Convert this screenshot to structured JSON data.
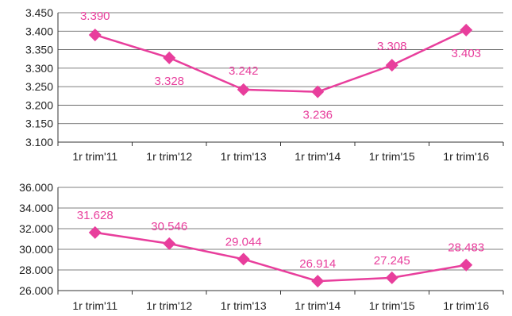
{
  "chart_data": [
    {
      "type": "line",
      "categories": [
        "1r trim'11",
        "1r trim'12",
        "1r trim'13",
        "1r trim'14",
        "1r trim'15",
        "1r trim'16"
      ],
      "values": [
        3390,
        3328,
        3242,
        3236,
        3308,
        3403
      ],
      "value_labels": [
        "3.390",
        "3.328",
        "3.242",
        "3.236",
        "3.308",
        "3.403"
      ],
      "label_side": [
        "above",
        "below",
        "above",
        "below",
        "above",
        "below"
      ],
      "ylim": [
        3100,
        3450
      ],
      "yticks": [
        3100,
        3150,
        3200,
        3250,
        3300,
        3350,
        3400,
        3450
      ],
      "ytick_labels": [
        "3.100",
        "3.150",
        "3.200",
        "3.250",
        "3.300",
        "3.350",
        "3.400",
        "3.450"
      ],
      "grid": "horizontal",
      "marker": "diamond",
      "color": "#e83e9c"
    },
    {
      "type": "line",
      "categories": [
        "1r trim'11",
        "1r trim'12",
        "1r trim'13",
        "1r trim'14",
        "1r trim'15",
        "1r trim'16"
      ],
      "values": [
        31628,
        30546,
        29044,
        26914,
        27245,
        28483
      ],
      "value_labels": [
        "31.628",
        "30.546",
        "29.044",
        "26.914",
        "27.245",
        "28.483"
      ],
      "label_side": [
        "above",
        "above",
        "above",
        "above",
        "above",
        "above"
      ],
      "ylim": [
        26000,
        36000
      ],
      "yticks": [
        26000,
        28000,
        30000,
        32000,
        34000,
        36000
      ],
      "ytick_labels": [
        "26.000",
        "28.000",
        "30.000",
        "32.000",
        "34.000",
        "36.000"
      ],
      "grid": "horizontal",
      "marker": "diamond",
      "color": "#e83e9c"
    }
  ]
}
